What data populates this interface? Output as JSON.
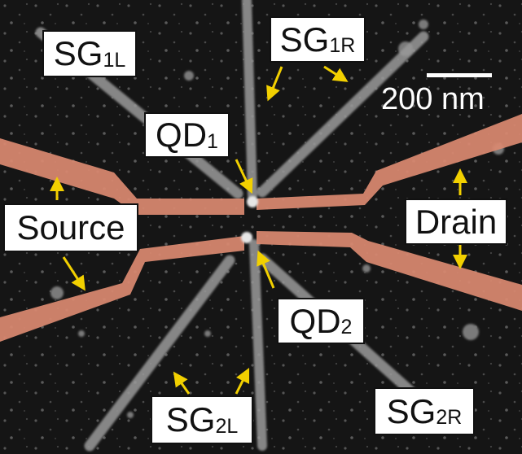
{
  "labels": {
    "sg1l": {
      "main": "SG",
      "sub": "1L"
    },
    "sg1r": {
      "main": "SG",
      "sub": "1R"
    },
    "qd1": {
      "main": "QD",
      "sub": "1"
    },
    "qd2": {
      "main": "QD",
      "sub": "2"
    },
    "source": {
      "main": "Source"
    },
    "drain": {
      "main": "Drain"
    },
    "sg2l": {
      "main": "SG",
      "sub": "2L"
    },
    "sg2r": {
      "main": "SG",
      "sub": "2R"
    }
  },
  "scale_bar": {
    "text": "200 nm"
  },
  "colors": {
    "background": "#151515",
    "gate": "#9a9a9a",
    "electrode": "#d98970",
    "arrow": "#f2d000"
  }
}
